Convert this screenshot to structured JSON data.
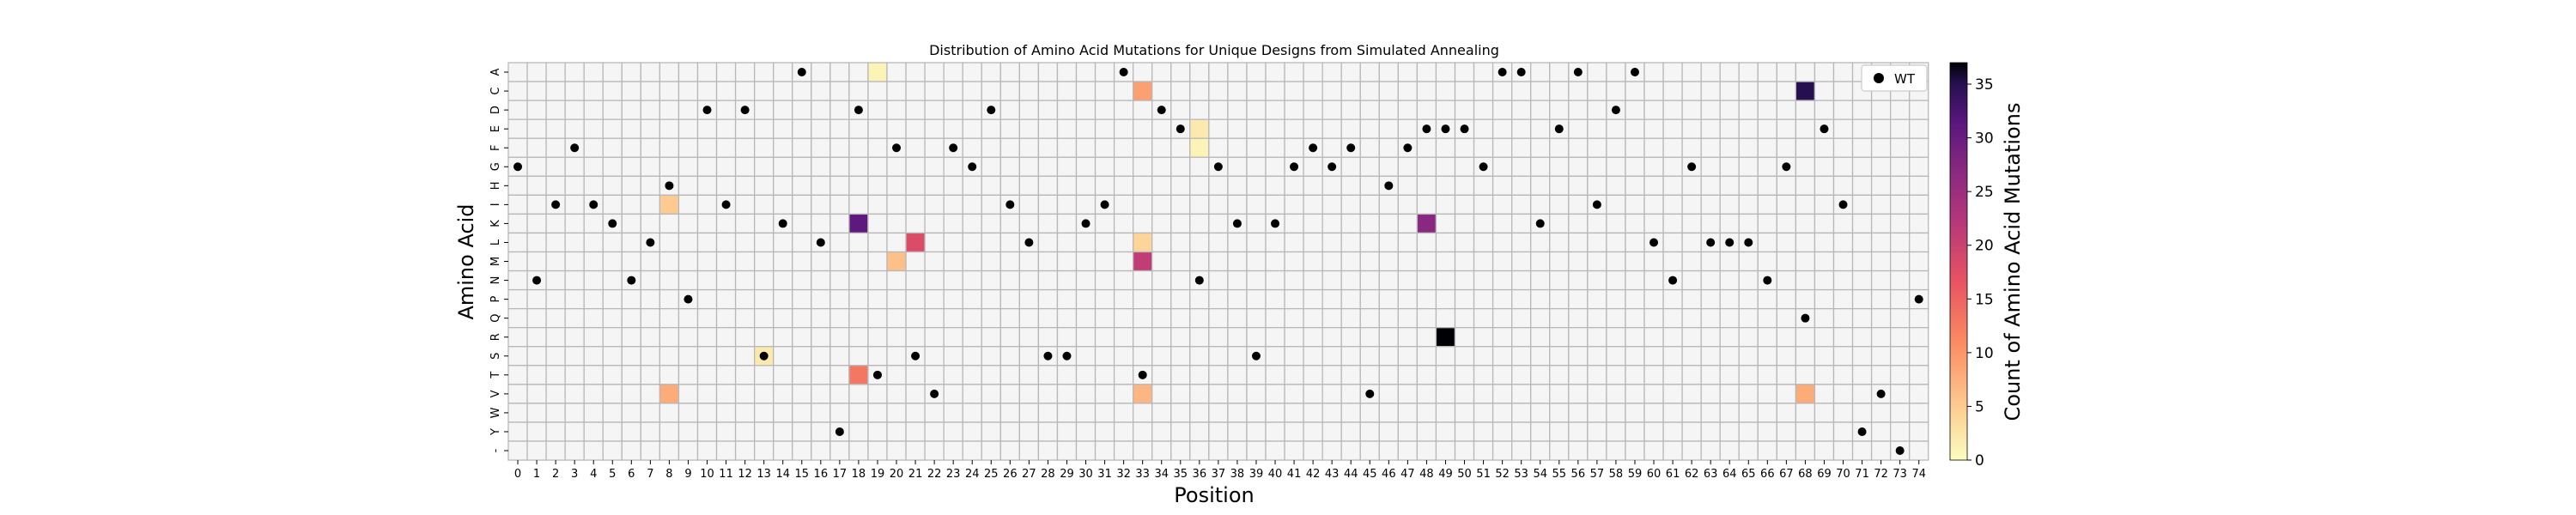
{
  "chart_data": {
    "type": "heatmap",
    "title": "Distribution of Amino Acid Mutations for Unique Designs from Simulated Annealing",
    "xlabel": "Position",
    "ylabel": "Amino Acid",
    "colorbar_label": "Count of Amino Acid Mutations",
    "colorbar_ticks": [
      0,
      5,
      10,
      15,
      20,
      25,
      30,
      35
    ],
    "colorbar_range": [
      0,
      37
    ],
    "colormap": "magma_r",
    "amino_acids": [
      "A",
      "C",
      "D",
      "E",
      "F",
      "G",
      "H",
      "I",
      "K",
      "L",
      "M",
      "N",
      "P",
      "Q",
      "R",
      "S",
      "T",
      "V",
      "W",
      "Y",
      "-"
    ],
    "positions": [
      0,
      1,
      2,
      3,
      4,
      5,
      6,
      7,
      8,
      9,
      10,
      11,
      12,
      13,
      14,
      15,
      16,
      17,
      18,
      19,
      20,
      21,
      22,
      23,
      24,
      25,
      26,
      27,
      28,
      29,
      30,
      31,
      32,
      33,
      34,
      35,
      36,
      37,
      38,
      39,
      40,
      41,
      42,
      43,
      44,
      45,
      46,
      47,
      48,
      49,
      50,
      51,
      52,
      53,
      54,
      55,
      56,
      57,
      58,
      59,
      60,
      61,
      62,
      63,
      64,
      65,
      66,
      67,
      68,
      69,
      70,
      71,
      72,
      73,
      74
    ],
    "mutation_counts": [
      {
        "position": 19,
        "amino_acid": "A",
        "count": 1
      },
      {
        "position": 33,
        "amino_acid": "C",
        "count": 9
      },
      {
        "position": 68,
        "amino_acid": "C",
        "count": 35
      },
      {
        "position": 36,
        "amino_acid": "E",
        "count": 2
      },
      {
        "position": 36,
        "amino_acid": "F",
        "count": 1
      },
      {
        "position": 8,
        "amino_acid": "I",
        "count": 5
      },
      {
        "position": 18,
        "amino_acid": "K",
        "count": 31
      },
      {
        "position": 48,
        "amino_acid": "K",
        "count": 27
      },
      {
        "position": 21,
        "amino_acid": "L",
        "count": 18
      },
      {
        "position": 33,
        "amino_acid": "L",
        "count": 4
      },
      {
        "position": 20,
        "amino_acid": "M",
        "count": 6
      },
      {
        "position": 33,
        "amino_acid": "M",
        "count": 21
      },
      {
        "position": 49,
        "amino_acid": "R",
        "count": 37
      },
      {
        "position": 13,
        "amino_acid": "S",
        "count": 2
      },
      {
        "position": 18,
        "amino_acid": "T",
        "count": 13
      },
      {
        "position": 8,
        "amino_acid": "V",
        "count": 8
      },
      {
        "position": 33,
        "amino_acid": "V",
        "count": 7
      },
      {
        "position": 68,
        "amino_acid": "V",
        "count": 8
      }
    ],
    "wild_type": [
      "G",
      "N",
      "I",
      "F",
      "I",
      "K",
      "N",
      "L",
      "H",
      "P",
      "D",
      "I",
      "D",
      "S",
      "K",
      "A",
      "L",
      "Y",
      "D",
      "T",
      "F",
      "S",
      "V",
      "F",
      "G",
      "D",
      "I",
      "L",
      "S",
      "S",
      "K",
      "I",
      "A",
      "T",
      "D",
      "E",
      "N",
      "G",
      "K",
      "S",
      "K",
      "G",
      "F",
      "G",
      "F",
      "V",
      "H",
      "F",
      "E",
      "E",
      "E",
      "G",
      "A",
      "A",
      "K",
      "E",
      "A",
      "I",
      "D",
      "A",
      "L",
      "N",
      "G",
      "L",
      "L",
      "L",
      "N",
      "G",
      "Q",
      "E",
      "I",
      "Y",
      "V",
      "-",
      "P"
    ],
    "legend": {
      "label": "WT",
      "placement": "upper right"
    },
    "grid": true
  }
}
